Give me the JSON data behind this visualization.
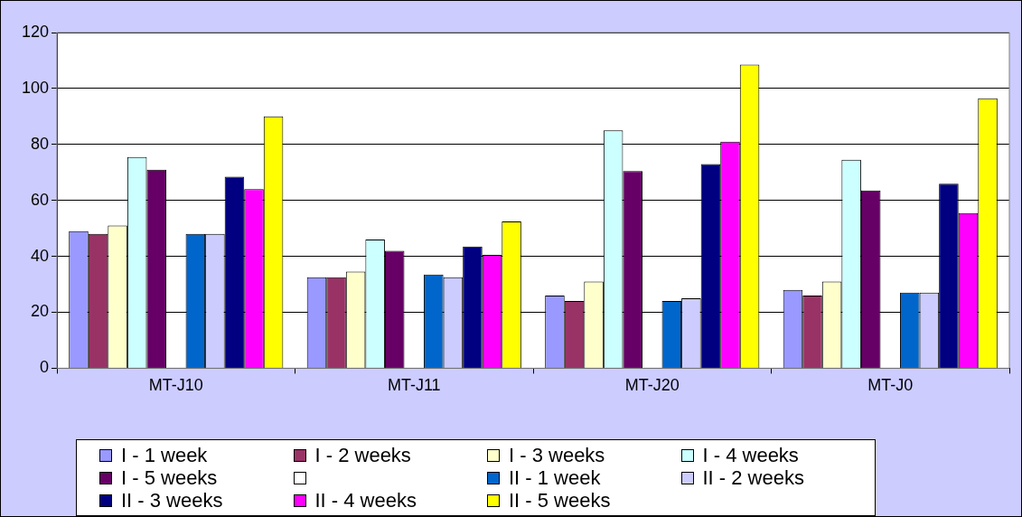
{
  "chart_data": {
    "type": "bar",
    "categories": [
      "MT-J10",
      "MT-J11",
      "MT-J20",
      "MT-J0"
    ],
    "series": [
      {
        "name": "I - 1 week",
        "color": "#9999ff",
        "values": [
          49,
          32.5,
          26,
          28
        ]
      },
      {
        "name": "I - 2 weeks",
        "color": "#993366",
        "values": [
          48,
          32.5,
          24,
          26
        ]
      },
      {
        "name": "I - 3 weeks",
        "color": "#ffffcc",
        "values": [
          51,
          34.5,
          31,
          31
        ]
      },
      {
        "name": "I - 4 weeks",
        "color": "#ccffff",
        "values": [
          75.5,
          46,
          85,
          74.5
        ]
      },
      {
        "name": "I - 5 weeks",
        "color": "#660066",
        "values": [
          71,
          42,
          70.5,
          63.5
        ]
      },
      {
        "color": "#ffffff",
        "values": [
          null,
          null,
          null,
          null
        ]
      },
      {
        "name": "II - 1 week",
        "color": "#0066cc",
        "values": [
          48,
          33.5,
          24,
          27
        ]
      },
      {
        "name": "II - 2 weeks",
        "color": "#ccccff",
        "values": [
          48,
          32.5,
          25,
          27
        ]
      },
      {
        "name": "II - 3 weeks",
        "color": "#000080",
        "values": [
          68.5,
          43.5,
          73,
          66
        ]
      },
      {
        "name": "II - 4 weeks",
        "color": "#ff00ff",
        "values": [
          64,
          40.5,
          81,
          55.5
        ]
      },
      {
        "name": "II - 5 weeks",
        "color": "#ffff00",
        "values": [
          90,
          52.5,
          108.5,
          96.5
        ]
      }
    ],
    "ylim": [
      0,
      120
    ],
    "yticks": [
      0,
      20,
      40,
      60,
      80,
      100,
      120
    ],
    "grid": "y",
    "legend": "bottom"
  }
}
